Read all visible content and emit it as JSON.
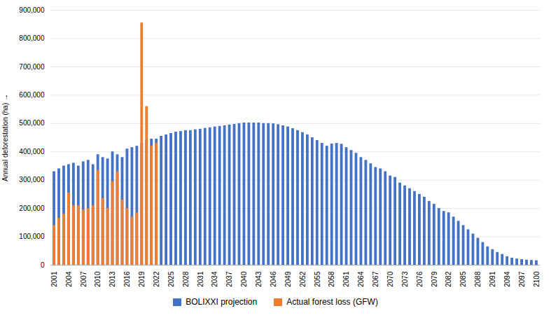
{
  "chart_data": {
    "type": "bar",
    "ylabel": "Annual deforestation (ha)",
    "categories": [
      "2001",
      null,
      null,
      "2004",
      null,
      null,
      "2007",
      null,
      null,
      "2010",
      null,
      null,
      "2013",
      null,
      null,
      "2016",
      null,
      null,
      "2019",
      null,
      null,
      "2022",
      null,
      null,
      "2025",
      null,
      null,
      "2028",
      null,
      null,
      "2031",
      null,
      null,
      "2034",
      null,
      null,
      "2037",
      null,
      null,
      "2040",
      null,
      null,
      "2043",
      null,
      null,
      "2046",
      null,
      null,
      "2049",
      null,
      null,
      "2052",
      null,
      null,
      "2055",
      null,
      null,
      "2058",
      null,
      null,
      "2061",
      null,
      null,
      "2064",
      null,
      null,
      "2067",
      null,
      null,
      "2070",
      null,
      null,
      "2073",
      null,
      null,
      "2076",
      null,
      null,
      "2079",
      null,
      null,
      "2082",
      null,
      null,
      "2085",
      null,
      null,
      "2088",
      null,
      null,
      "2091",
      null,
      null,
      "2094",
      null,
      null,
      "2097",
      null,
      null,
      "2100"
    ],
    "series": [
      {
        "name": "BOLIXXI projection",
        "color": "#4472C4",
        "values": [
          330000,
          340000,
          350000,
          355000,
          360000,
          350000,
          365000,
          370000,
          355000,
          390000,
          380000,
          375000,
          400000,
          390000,
          380000,
          410000,
          415000,
          420000,
          430000,
          440000,
          445000,
          445000,
          455000,
          460000,
          465000,
          470000,
          472000,
          475000,
          475000,
          478000,
          480000,
          483000,
          485000,
          488000,
          490000,
          492000,
          495000,
          497000,
          500000,
          502000,
          502000,
          502000,
          502000,
          500000,
          500000,
          499000,
          496000,
          492000,
          488000,
          482000,
          475000,
          468000,
          460000,
          450000,
          440000,
          430000,
          420000,
          428000,
          430000,
          427000,
          415000,
          405000,
          395000,
          380000,
          370000,
          358000,
          345000,
          340000,
          330000,
          315000,
          310000,
          290000,
          280000,
          270000,
          260000,
          250000,
          240000,
          225000,
          215000,
          200000,
          190000,
          185000,
          170000,
          155000,
          140000,
          125000,
          110000,
          95000,
          80000,
          65000,
          55000,
          45000,
          38000,
          30000,
          25000,
          22000,
          20000,
          18000,
          17000,
          16000
        ]
      },
      {
        "name": "Actual forest loss (GFW)",
        "color": "#ED7D31",
        "values": [
          140000,
          165000,
          180000,
          255000,
          210000,
          210000,
          195000,
          200000,
          210000,
          335000,
          235000,
          200000,
          295000,
          330000,
          230000,
          200000,
          170000,
          185000,
          855000,
          560000,
          420000,
          430000,
          null,
          null,
          null,
          null,
          null,
          null,
          null,
          null,
          null,
          null,
          null,
          null,
          null,
          null,
          null,
          null,
          null,
          null,
          null,
          null,
          null,
          null,
          null,
          null,
          null,
          null,
          null,
          null,
          null,
          null,
          null,
          null,
          null,
          null,
          null,
          null,
          null,
          null,
          null,
          null,
          null,
          null,
          null,
          null,
          null,
          null,
          null,
          null,
          null,
          null,
          null,
          null,
          null,
          null,
          null,
          null,
          null,
          null,
          null,
          null,
          null,
          null,
          null,
          null,
          null,
          null,
          null,
          null,
          null,
          null,
          null,
          null,
          null,
          null,
          null,
          null,
          null,
          null
        ]
      }
    ],
    "stacked": false,
    "ylim": [
      0,
      900000
    ],
    "yticks": [
      0,
      {
        "value": 100000,
        "label": "100,000"
      },
      {
        "value": 200000,
        "label": "200,000"
      },
      {
        "value": 300000,
        "label": "300,000"
      },
      {
        "value": 400000,
        "label": "400,000"
      },
      {
        "value": 500000,
        "label": "500,000"
      },
      {
        "value": 600000,
        "label": "600,000"
      },
      {
        "value": 700000,
        "label": "700,000"
      },
      {
        "value": 800000,
        "label": "800,000"
      },
      {
        "value": 900000,
        "label": "900,000"
      }
    ],
    "grid": true,
    "legend": "bottom"
  }
}
